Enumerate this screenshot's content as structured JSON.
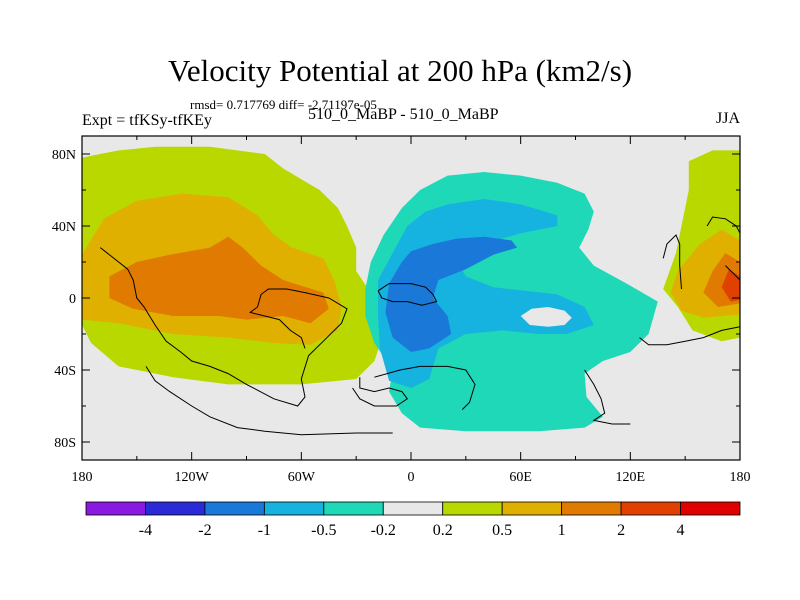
{
  "chart_data": {
    "type": "heatmap",
    "title": "Velocity Potential at 200 hPa (km2/s)",
    "stats_line": "rmsd= 0.717769  diff= -2.71197e-05",
    "left_label": "Expt = tfKSy-tfKEy",
    "center_label": "510_0_MaBP - 510_0_MaBP",
    "right_label": "JJA",
    "x_ticks": [
      "180",
      "120W",
      "60W",
      "0",
      "60E",
      "120E",
      "180"
    ],
    "x_values": [
      -180,
      -120,
      -60,
      0,
      60,
      120,
      180
    ],
    "y_ticks": [
      "80N",
      "40N",
      "0",
      "40S",
      "80S"
    ],
    "y_values": [
      80,
      40,
      0,
      -40,
      -80
    ],
    "xlim": [
      -180,
      180
    ],
    "ylim": [
      -90,
      90
    ],
    "colorbar": {
      "labels": [
        "-4",
        "-2",
        "-1",
        "-0.5",
        "-0.2",
        "0.2",
        "0.5",
        "1",
        "2",
        "4"
      ],
      "colors": [
        "#8a1ae0",
        "#2a2ad6",
        "#1a78d8",
        "#16b2e0",
        "#1ed8b8",
        "#e8e8e8",
        "#b8d800",
        "#e0b000",
        "#e07a00",
        "#e04000",
        "#e00000"
      ]
    },
    "fields": [
      {
        "name": "positive-outer",
        "level": "0.2 to 0.5",
        "color": "#b8d800",
        "polygons": [
          [
            [
              -180,
              78
            ],
            [
              -160,
              82
            ],
            [
              -140,
              84
            ],
            [
              -110,
              84
            ],
            [
              -80,
              80
            ],
            [
              -70,
              72
            ],
            [
              -60,
              66
            ],
            [
              -50,
              60
            ],
            [
              -40,
              50
            ],
            [
              -35,
              40
            ],
            [
              -30,
              28
            ],
            [
              -30,
              15
            ],
            [
              -20,
              0
            ],
            [
              -15,
              -20
            ],
            [
              -20,
              -35
            ],
            [
              -30,
              -45
            ],
            [
              -60,
              -48
            ],
            [
              -100,
              -48
            ],
            [
              -130,
              -44
            ],
            [
              -160,
              -38
            ],
            [
              -175,
              -25
            ],
            [
              -180,
              -15
            ]
          ],
          [
            [
              180,
              82
            ],
            [
              165,
              82
            ],
            [
              152,
              76
            ],
            [
              152,
              60
            ],
            [
              148,
              40
            ],
            [
              145,
              25
            ],
            [
              138,
              5
            ],
            [
              146,
              -5
            ],
            [
              154,
              -18
            ],
            [
              170,
              -24
            ],
            [
              180,
              -22
            ]
          ]
        ]
      },
      {
        "name": "positive-mid",
        "level": "0.5 to 1",
        "color": "#e0b000",
        "polygons": [
          [
            [
              -180,
              24
            ],
            [
              -168,
              44
            ],
            [
              -150,
              54
            ],
            [
              -125,
              58
            ],
            [
              -100,
              56
            ],
            [
              -84,
              46
            ],
            [
              -75,
              35
            ],
            [
              -65,
              28
            ],
            [
              -48,
              22
            ],
            [
              -42,
              10
            ],
            [
              -38,
              -5
            ],
            [
              -40,
              -18
            ],
            [
              -55,
              -26
            ],
            [
              -75,
              -25
            ],
            [
              -100,
              -22
            ],
            [
              -130,
              -20
            ],
            [
              -160,
              -14
            ],
            [
              -180,
              -12
            ]
          ],
          [
            [
              180,
              32
            ],
            [
              170,
              38
            ],
            [
              158,
              30
            ],
            [
              146,
              15
            ],
            [
              142,
              3
            ],
            [
              148,
              -7
            ],
            [
              160,
              -11
            ],
            [
              180,
              -9
            ]
          ]
        ]
      },
      {
        "name": "positive-high",
        "level": "1 to 2",
        "color": "#e07a00",
        "polygons": [
          [
            [
              -165,
              12
            ],
            [
              -150,
              20
            ],
            [
              -132,
              24
            ],
            [
              -110,
              28
            ],
            [
              -100,
              34
            ],
            [
              -92,
              28
            ],
            [
              -82,
              18
            ],
            [
              -70,
              10
            ],
            [
              -48,
              3
            ],
            [
              -45,
              -6
            ],
            [
              -55,
              -14
            ],
            [
              -70,
              -10
            ],
            [
              -90,
              -12
            ],
            [
              -105,
              -10
            ],
            [
              -130,
              -10
            ],
            [
              -152,
              -6
            ],
            [
              -165,
              0
            ]
          ],
          [
            [
              180,
              20
            ],
            [
              172,
              25
            ],
            [
              165,
              15
            ],
            [
              160,
              3
            ],
            [
              168,
              -5
            ],
            [
              180,
              -3
            ]
          ]
        ]
      },
      {
        "name": "positive-core",
        "level": "2 to 4",
        "color": "#e04000",
        "polygons": [
          [
            [
              180,
              12
            ],
            [
              174,
              16
            ],
            [
              170,
              6
            ],
            [
              175,
              -2
            ],
            [
              180,
              -1
            ]
          ]
        ]
      },
      {
        "name": "negative-outer",
        "level": "-0.5 to -0.2",
        "color": "#1ed8b8",
        "polygons": [
          [
            [
              -5,
              50
            ],
            [
              5,
              60
            ],
            [
              20,
              68
            ],
            [
              40,
              70
            ],
            [
              60,
              68
            ],
            [
              80,
              64
            ],
            [
              95,
              58
            ],
            [
              100,
              48
            ],
            [
              97,
              38
            ],
            [
              92,
              28
            ],
            [
              100,
              18
            ],
            [
              118,
              8
            ],
            [
              135,
              -2
            ],
            [
              130,
              -20
            ],
            [
              120,
              -30
            ],
            [
              105,
              -35
            ],
            [
              95,
              -42
            ],
            [
              96,
              -55
            ],
            [
              105,
              -66
            ],
            [
              95,
              -72
            ],
            [
              70,
              -74
            ],
            [
              30,
              -74
            ],
            [
              5,
              -72
            ],
            [
              -5,
              -64
            ],
            [
              -12,
              -52
            ],
            [
              -10,
              -40
            ],
            [
              -20,
              -25
            ],
            [
              -25,
              -10
            ],
            [
              -25,
              5
            ],
            [
              -22,
              20
            ],
            [
              -15,
              35
            ]
          ]
        ]
      },
      {
        "name": "negative-mid",
        "level": "-1 to -0.5",
        "color": "#16b2e0",
        "polygons": [
          [
            [
              -2,
              40
            ],
            [
              8,
              48
            ],
            [
              20,
              52
            ],
            [
              40,
              55
            ],
            [
              60,
              52
            ],
            [
              80,
              46
            ],
            [
              80,
              40
            ],
            [
              60,
              36
            ],
            [
              40,
              30
            ],
            [
              25,
              22
            ],
            [
              30,
              12
            ],
            [
              45,
              6
            ],
            [
              80,
              2
            ],
            [
              95,
              -5
            ],
            [
              100,
              -15
            ],
            [
              85,
              -20
            ],
            [
              70,
              -20
            ],
            [
              50,
              -18
            ],
            [
              30,
              -20
            ],
            [
              15,
              -28
            ],
            [
              10,
              -45
            ],
            [
              0,
              -50
            ],
            [
              -12,
              -46
            ],
            [
              -17,
              -28
            ],
            [
              -18,
              -10
            ],
            [
              -18,
              10
            ],
            [
              -10,
              25
            ]
          ]
        ]
      },
      {
        "name": "negative-core",
        "level": "-2 to -1",
        "color": "#1a78d8",
        "polygons": [
          [
            [
              -5,
              20
            ],
            [
              0,
              26
            ],
            [
              12,
              30
            ],
            [
              25,
              33
            ],
            [
              40,
              34
            ],
            [
              55,
              32
            ],
            [
              58,
              28
            ],
            [
              45,
              24
            ],
            [
              30,
              16
            ],
            [
              15,
              10
            ],
            [
              12,
              0
            ],
            [
              20,
              -10
            ],
            [
              22,
              -20
            ],
            [
              10,
              -28
            ],
            [
              0,
              -30
            ],
            [
              -10,
              -22
            ],
            [
              -14,
              -8
            ],
            [
              -12,
              8
            ]
          ]
        ]
      },
      {
        "name": "neutral-hole",
        "level": "-0.2 to 0.2",
        "color": "#e8e8e8",
        "polygons": [
          [
            [
              60,
              -10
            ],
            [
              66,
              -6
            ],
            [
              75,
              -5
            ],
            [
              84,
              -7
            ],
            [
              88,
              -11
            ],
            [
              84,
              -15
            ],
            [
              75,
              -16
            ],
            [
              65,
              -15
            ]
          ]
        ]
      }
    ],
    "coastlines": [
      [
        [
          -170,
          28
        ],
        [
          -160,
          20
        ],
        [
          -155,
          16
        ],
        [
          -152,
          10
        ],
        [
          -150,
          0
        ],
        [
          -146,
          -5
        ],
        [
          -140,
          -15
        ],
        [
          -134,
          -24
        ],
        [
          -126,
          -30
        ],
        [
          -120,
          -35
        ],
        [
          -110,
          -38
        ],
        [
          -100,
          -42
        ],
        [
          -90,
          -48
        ],
        [
          -75,
          -56
        ],
        [
          -62,
          -60
        ],
        [
          -58,
          -55
        ],
        [
          -60,
          -45
        ],
        [
          -56,
          -32
        ],
        [
          -48,
          -24
        ],
        [
          -38,
          -14
        ],
        [
          -35,
          -6
        ],
        [
          -45,
          0
        ],
        [
          -58,
          3
        ],
        [
          -68,
          5
        ],
        [
          -78,
          5
        ],
        [
          -82,
          2
        ],
        [
          -84,
          -5
        ],
        [
          -88,
          -8
        ],
        [
          -80,
          -10
        ],
        [
          -72,
          -12
        ],
        [
          -66,
          -18
        ],
        [
          -60,
          -22
        ],
        [
          -58,
          -28
        ]
      ],
      [
        [
          -20,
          -44
        ],
        [
          -6,
          -40
        ],
        [
          5,
          -38
        ],
        [
          20,
          -38
        ],
        [
          30,
          -40
        ],
        [
          35,
          -48
        ],
        [
          32,
          -58
        ],
        [
          28,
          -62
        ]
      ],
      [
        [
          -18,
          4
        ],
        [
          -12,
          8
        ],
        [
          0,
          8
        ],
        [
          8,
          6
        ],
        [
          12,
          2
        ],
        [
          14,
          -2
        ],
        [
          6,
          -4
        ],
        [
          -2,
          -2
        ],
        [
          -10,
          -2
        ],
        [
          -16,
          0
        ],
        [
          -18,
          4
        ]
      ],
      [
        [
          -28,
          -44
        ],
        [
          -28,
          -50
        ],
        [
          -20,
          -52
        ],
        [
          -12,
          -50
        ],
        [
          -5,
          -52
        ],
        [
          -2,
          -56
        ],
        [
          -8,
          -60
        ],
        [
          -20,
          -60
        ],
        [
          -28,
          -56
        ],
        [
          -32,
          -50
        ]
      ],
      [
        [
          -145,
          -38
        ],
        [
          -140,
          -46
        ],
        [
          -132,
          -52
        ],
        [
          -120,
          -60
        ],
        [
          -110,
          -66
        ],
        [
          -95,
          -72
        ],
        [
          -80,
          -74
        ],
        [
          -60,
          -76
        ],
        [
          -30,
          -75
        ],
        [
          -10,
          -75
        ]
      ],
      [
        [
          95,
          -40
        ],
        [
          100,
          -48
        ],
        [
          104,
          -56
        ],
        [
          106,
          -64
        ],
        [
          100,
          -68
        ],
        [
          110,
          -70
        ],
        [
          120,
          -70
        ]
      ],
      [
        [
          138,
          22
        ],
        [
          140,
          30
        ],
        [
          145,
          35
        ],
        [
          147,
          30
        ],
        [
          147,
          18
        ],
        [
          148,
          5
        ]
      ],
      [
        [
          125,
          -22
        ],
        [
          130,
          -26
        ],
        [
          140,
          -26
        ],
        [
          150,
          -24
        ],
        [
          160,
          -22
        ],
        [
          170,
          -18
        ],
        [
          180,
          -16
        ]
      ],
      [
        [
          162,
          40
        ],
        [
          165,
          45
        ],
        [
          172,
          44
        ],
        [
          178,
          40
        ],
        [
          180,
          36
        ]
      ],
      [
        [
          172,
          18
        ],
        [
          176,
          14
        ],
        [
          180,
          10
        ]
      ]
    ]
  }
}
